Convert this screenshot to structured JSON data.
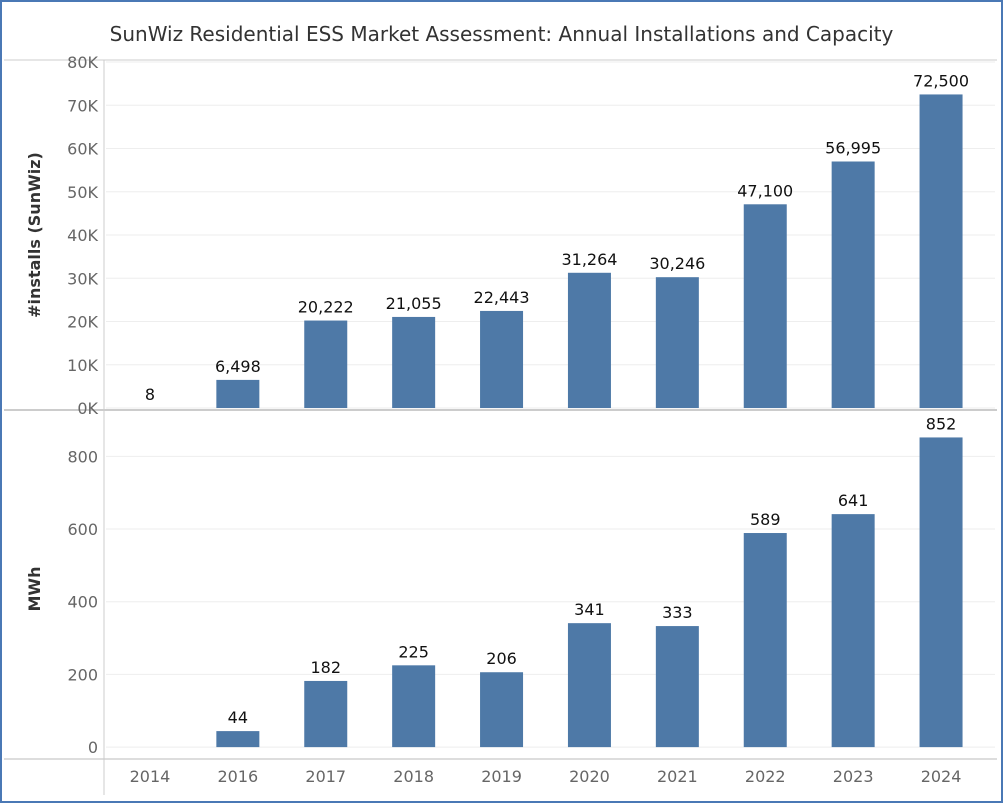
{
  "title": "SunWiz Residential ESS Market Assessment: Annual Installations and Capacity",
  "colors": {
    "bar": "#4e79a7",
    "border": "#4a78b5",
    "grid": "#eeeeee",
    "axis": "#cccccc"
  },
  "chart_data": [
    {
      "type": "bar",
      "ylabel": "#installs (SunWiz)",
      "categories": [
        "2014",
        "2016",
        "2017",
        "2018",
        "2019",
        "2020",
        "2021",
        "2022",
        "2023",
        "2024"
      ],
      "values": [
        8,
        6498,
        20222,
        21055,
        22443,
        31264,
        30246,
        47100,
        56995,
        72500
      ],
      "data_labels": [
        "8",
        "6,498",
        "20,222",
        "21,055",
        "22,443",
        "31,264",
        "30,246",
        "47,100",
        "56,995",
        "72,500"
      ],
      "ylim": [
        0,
        80000
      ],
      "yticks": [
        0,
        10000,
        20000,
        30000,
        40000,
        50000,
        60000,
        70000,
        80000
      ],
      "ytick_labels": [
        "0K",
        "10K",
        "20K",
        "30K",
        "40K",
        "50K",
        "60K",
        "70K",
        "80K"
      ],
      "grid": true
    },
    {
      "type": "bar",
      "ylabel": "MWh",
      "xlabel": "",
      "categories": [
        "2014",
        "2016",
        "2017",
        "2018",
        "2019",
        "2020",
        "2021",
        "2022",
        "2023",
        "2024"
      ],
      "values": [
        0,
        44,
        182,
        225,
        206,
        341,
        333,
        589,
        641,
        852
      ],
      "data_labels": [
        "",
        "44",
        "182",
        "225",
        "206",
        "341",
        "333",
        "589",
        "641",
        "852"
      ],
      "ylim": [
        -30,
        900
      ],
      "yticks": [
        0,
        200,
        400,
        600,
        800
      ],
      "ytick_labels": [
        "0",
        "200",
        "400",
        "600",
        "800"
      ],
      "grid": true
    }
  ]
}
